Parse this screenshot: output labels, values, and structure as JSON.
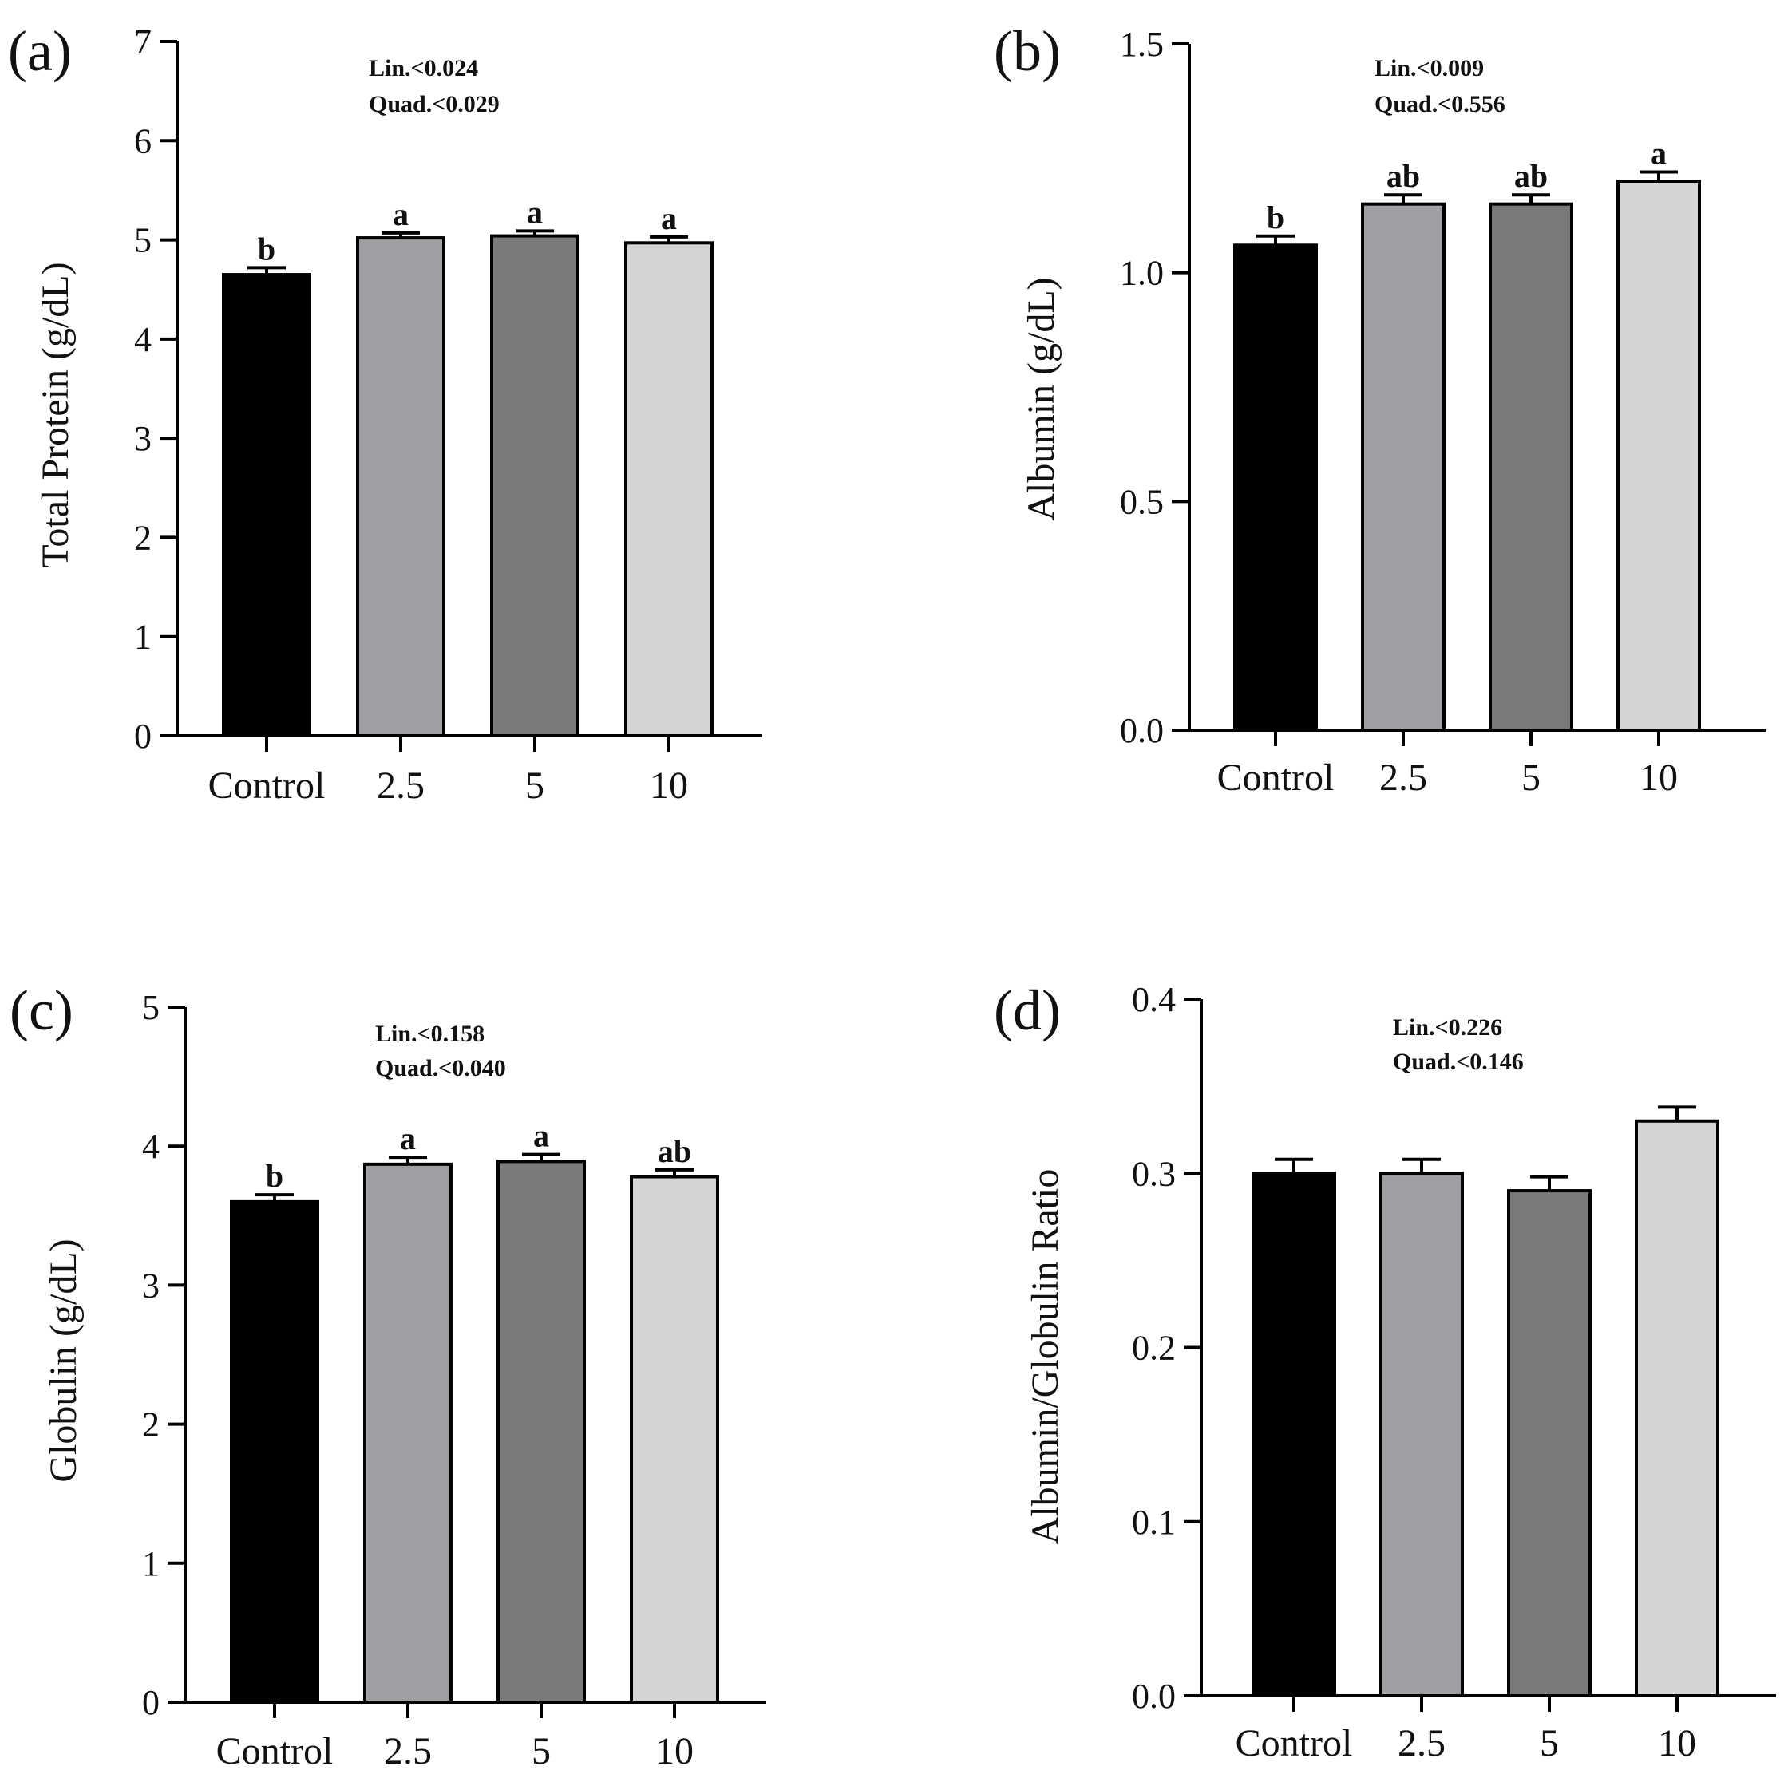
{
  "figure": {
    "panels": [
      {
        "panel_label": "(a)",
        "stats": {
          "lin": "Lin.<0.024",
          "quad": "Quad.<0.029"
        }
      },
      {
        "panel_label": "(b)",
        "stats": {
          "lin": "Lin.<0.009",
          "quad": "Quad.<0.556"
        }
      },
      {
        "panel_label": "(c)",
        "stats": {
          "lin": "Lin.<0.158",
          "quad": "Quad.<0.040"
        }
      },
      {
        "panel_label": "(d)",
        "stats": {
          "lin": "Lin.<0.226",
          "quad": "Quad.<0.146"
        }
      }
    ]
  },
  "chart_data": [
    {
      "type": "bar",
      "title": "",
      "xlabel": "",
      "ylabel": "Total Protein (g/dL)",
      "categories": [
        "Control",
        "2.5",
        "5",
        "10"
      ],
      "values": [
        4.65,
        5.02,
        5.04,
        4.97
      ],
      "errors": [
        0.07,
        0.05,
        0.05,
        0.06
      ],
      "significance": [
        "b",
        "a",
        "a",
        "a"
      ],
      "ylim": [
        0,
        7
      ],
      "yticks": [
        0,
        1,
        2,
        3,
        4,
        5,
        6,
        7
      ],
      "ytick_labels": [
        "0",
        "1",
        "2",
        "3",
        "4",
        "5",
        "6",
        "7"
      ],
      "colors": [
        "#000000",
        "#9e9ea3",
        "#7a7a7a",
        "#d4d4d4"
      ]
    },
    {
      "type": "bar",
      "title": "",
      "xlabel": "",
      "ylabel": "Albumin (g/dL)",
      "categories": [
        "Control",
        "2.5",
        "5",
        "10"
      ],
      "values": [
        1.06,
        1.15,
        1.15,
        1.2
      ],
      "errors": [
        0.02,
        0.02,
        0.02,
        0.02
      ],
      "significance": [
        "b",
        "ab",
        "ab",
        "a"
      ],
      "ylim": [
        0,
        1.5
      ],
      "yticks": [
        0,
        0.5,
        1.0,
        1.5
      ],
      "ytick_labels": [
        "0.0",
        "0.5",
        "1.0",
        "1.5"
      ],
      "colors": [
        "#000000",
        "#9e9ea3",
        "#7a7a7a",
        "#d4d4d4"
      ]
    },
    {
      "type": "bar",
      "title": "",
      "xlabel": "",
      "ylabel": "Globulin (g/dL)",
      "categories": [
        "Control",
        "2.5",
        "5",
        "10"
      ],
      "values": [
        3.6,
        3.87,
        3.89,
        3.78
      ],
      "errors": [
        0.05,
        0.05,
        0.05,
        0.05
      ],
      "significance": [
        "b",
        "a",
        "a",
        "ab"
      ],
      "ylim": [
        0,
        5
      ],
      "yticks": [
        0,
        1,
        2,
        3,
        4,
        5
      ],
      "ytick_labels": [
        "0",
        "1",
        "2",
        "3",
        "4",
        "5"
      ],
      "colors": [
        "#000000",
        "#9e9ea3",
        "#7a7a7a",
        "#d4d4d4"
      ]
    },
    {
      "type": "bar",
      "title": "",
      "xlabel": "",
      "ylabel": "Albumin/Globulin Ratio",
      "categories": [
        "Control",
        "2.5",
        "5",
        "10"
      ],
      "values": [
        0.3,
        0.3,
        0.29,
        0.33
      ],
      "errors": [
        0.008,
        0.008,
        0.008,
        0.008
      ],
      "significance": [
        "",
        "",
        "",
        ""
      ],
      "ylim": [
        0,
        0.4
      ],
      "yticks": [
        0,
        0.1,
        0.2,
        0.3,
        0.4
      ],
      "ytick_labels": [
        "0.0",
        "0.1",
        "0.2",
        "0.3",
        "0.4"
      ],
      "colors": [
        "#000000",
        "#9e9ea3",
        "#7a7a7a",
        "#d4d4d4"
      ]
    }
  ]
}
